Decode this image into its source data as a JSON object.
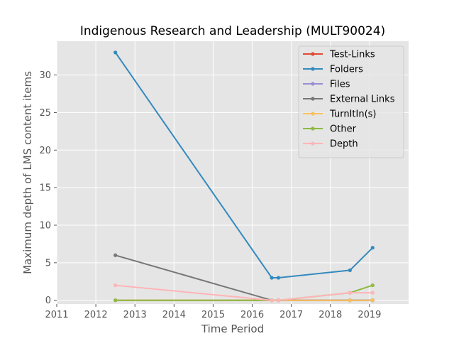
{
  "chart_data": {
    "type": "line",
    "title": "Indigenous Research and Leadership (MULT90024)",
    "xlabel": "Time Period",
    "ylabel": "Maximum depth of LMS content items",
    "xlim": [
      2011.0,
      2020.0
    ],
    "ylim": [
      -0.5,
      34.5
    ],
    "x_ticks": [
      2011,
      2012,
      2013,
      2014,
      2015,
      2016,
      2017,
      2018,
      2019
    ],
    "x_tick_labels": [
      "2011",
      "2012",
      "2013",
      "2014",
      "2015",
      "2016",
      "2017",
      "2018",
      "2019"
    ],
    "y_ticks": [
      0,
      5,
      10,
      15,
      20,
      25,
      30
    ],
    "y_tick_labels": [
      "0",
      "5",
      "10",
      "15",
      "20",
      "25",
      "30"
    ],
    "grid": true,
    "legend_position": "top-right",
    "x": [
      2012.5,
      2016.5,
      2016.67,
      2018.5,
      2019.08
    ],
    "series": [
      {
        "name": "Test-Links",
        "color": "#E24A33",
        "values": [
          0,
          0,
          0,
          0,
          0
        ]
      },
      {
        "name": "Folders",
        "color": "#348ABD",
        "values": [
          33,
          3,
          3,
          4,
          7
        ]
      },
      {
        "name": "Files",
        "color": "#988ED5",
        "values": [
          0,
          0,
          0,
          0,
          0
        ]
      },
      {
        "name": "External Links",
        "color": "#777777",
        "values": [
          6,
          0,
          0,
          0,
          0
        ]
      },
      {
        "name": "TurnItIn(s)",
        "color": "#FBC15E",
        "values": [
          0,
          0,
          0,
          0,
          0
        ]
      },
      {
        "name": "Other",
        "color": "#8EBA42",
        "values": [
          0,
          0,
          0,
          1,
          2
        ]
      },
      {
        "name": "Depth",
        "color": "#FFB5B8",
        "values": [
          2,
          0,
          0,
          1,
          1
        ]
      }
    ]
  },
  "style": {
    "plot_background": "#E5E5E5",
    "grid_color": "#FFFFFF",
    "text_color": "#555555",
    "title_color": "#000000"
  }
}
